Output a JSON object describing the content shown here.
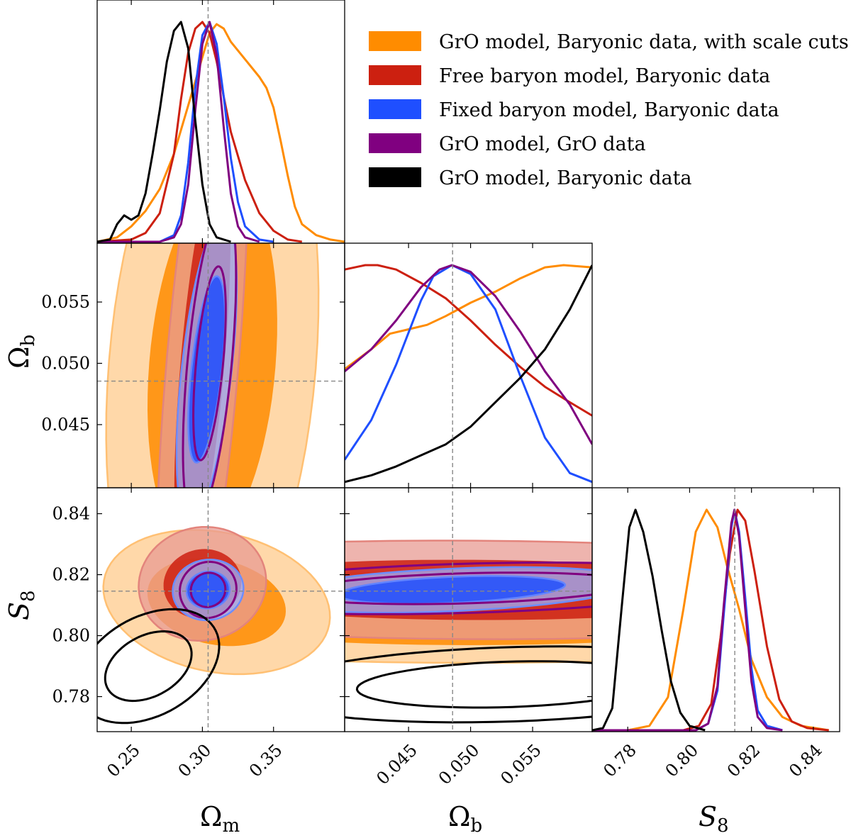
{
  "chart_data": {
    "type": "corner",
    "title": "",
    "parameters": [
      {
        "key": "Om",
        "label": "Ωm",
        "label_base": "Ω",
        "label_sub": "m",
        "range": [
          0.226,
          0.4
        ],
        "ticks": [
          0.25,
          0.3,
          0.35
        ],
        "tick_labels": [
          "0.25",
          "0.30",
          "0.35"
        ],
        "truth": 0.304
      },
      {
        "key": "Ob",
        "label": "Ωb",
        "label_base": "Ω",
        "label_sub": "b",
        "range": [
          0.03985,
          0.0598
        ],
        "ticks": [
          0.045,
          0.05,
          0.055
        ],
        "tick_labels": [
          "0.045",
          "0.050",
          "0.055"
        ],
        "truth": 0.04855
      },
      {
        "key": "S8",
        "label": "S8",
        "label_base": "S",
        "label_sub": "8",
        "range": [
          0.7685,
          0.8485
        ],
        "ticks": [
          0.78,
          0.8,
          0.82,
          0.84
        ],
        "tick_labels": [
          "0.78",
          "0.80",
          "0.82",
          "0.84"
        ],
        "truth": 0.8146
      }
    ],
    "legend_position": "top-right",
    "series": [
      {
        "name": "GrO model, Baryonic data, with scale cuts",
        "color": "#ff8c00",
        "filled": true,
        "outline": false,
        "marginals": {
          "Om": [
            [
              0.226,
              0
            ],
            [
              0.24,
              0.02
            ],
            [
              0.25,
              0.07
            ],
            [
              0.26,
              0.14
            ],
            [
              0.27,
              0.24
            ],
            [
              0.28,
              0.4
            ],
            [
              0.29,
              0.62
            ],
            [
              0.3,
              0.84
            ],
            [
              0.305,
              0.95
            ],
            [
              0.31,
              0.99
            ],
            [
              0.315,
              0.97
            ],
            [
              0.32,
              0.91
            ],
            [
              0.33,
              0.83
            ],
            [
              0.34,
              0.75
            ],
            [
              0.345,
              0.7
            ],
            [
              0.35,
              0.61
            ],
            [
              0.355,
              0.46
            ],
            [
              0.36,
              0.3
            ],
            [
              0.365,
              0.16
            ],
            [
              0.37,
              0.08
            ],
            [
              0.38,
              0.03
            ],
            [
              0.39,
              0.01
            ],
            [
              0.4,
              0
            ]
          ],
          "Ob": [
            [
              0.03985,
              0.53
            ],
            [
              0.042,
              0.62
            ],
            [
              0.0435,
              0.69
            ],
            [
              0.045,
              0.71
            ],
            [
              0.0465,
              0.73
            ],
            [
              0.048,
              0.77
            ],
            [
              0.05,
              0.83
            ],
            [
              0.052,
              0.88
            ],
            [
              0.054,
              0.94
            ],
            [
              0.056,
              0.99
            ],
            [
              0.0575,
              1.0
            ],
            [
              0.0598,
              0.99
            ]
          ],
          "S8": [
            [
              0.7685,
              0
            ],
            [
              0.78,
              0
            ],
            [
              0.787,
              0.02
            ],
            [
              0.793,
              0.15
            ],
            [
              0.798,
              0.55
            ],
            [
              0.802,
              0.9
            ],
            [
              0.8055,
              1.0
            ],
            [
              0.809,
              0.92
            ],
            [
              0.812,
              0.75
            ],
            [
              0.816,
              0.55
            ],
            [
              0.82,
              0.32
            ],
            [
              0.825,
              0.15
            ],
            [
              0.83,
              0.06
            ],
            [
              0.836,
              0.02
            ],
            [
              0.845,
              0
            ]
          ]
        }
      },
      {
        "name": "Free baryon model, Baryonic data",
        "color": "#cc2010",
        "filled": true,
        "outline": false,
        "marginals": {
          "Om": [
            [
              0.226,
              0
            ],
            [
              0.25,
              0.01
            ],
            [
              0.26,
              0.04
            ],
            [
              0.27,
              0.13
            ],
            [
              0.28,
              0.4
            ],
            [
              0.285,
              0.65
            ],
            [
              0.29,
              0.86
            ],
            [
              0.295,
              0.97
            ],
            [
              0.3,
              1.0
            ],
            [
              0.305,
              0.95
            ],
            [
              0.31,
              0.82
            ],
            [
              0.315,
              0.66
            ],
            [
              0.32,
              0.5
            ],
            [
              0.33,
              0.28
            ],
            [
              0.34,
              0.13
            ],
            [
              0.35,
              0.05
            ],
            [
              0.36,
              0.01
            ],
            [
              0.37,
              0
            ]
          ],
          "Ob": [
            [
              0.03985,
              0.98
            ],
            [
              0.0415,
              1.0
            ],
            [
              0.0425,
              1.0
            ],
            [
              0.044,
              0.98
            ],
            [
              0.046,
              0.92
            ],
            [
              0.048,
              0.85
            ],
            [
              0.05,
              0.75
            ],
            [
              0.052,
              0.64
            ],
            [
              0.054,
              0.54
            ],
            [
              0.056,
              0.45
            ],
            [
              0.058,
              0.38
            ],
            [
              0.0598,
              0.32
            ]
          ],
          "S8": [
            [
              0.7685,
              0
            ],
            [
              0.798,
              0
            ],
            [
              0.803,
              0.02
            ],
            [
              0.807,
              0.12
            ],
            [
              0.81,
              0.42
            ],
            [
              0.813,
              0.8
            ],
            [
              0.8155,
              1.0
            ],
            [
              0.818,
              0.95
            ],
            [
              0.821,
              0.72
            ],
            [
              0.825,
              0.38
            ],
            [
              0.829,
              0.14
            ],
            [
              0.833,
              0.04
            ],
            [
              0.838,
              0.01
            ],
            [
              0.845,
              0
            ]
          ]
        }
      },
      {
        "name": "Fixed baryon model, Baryonic data",
        "color": "#1f4fff",
        "filled": true,
        "outline": true,
        "marginals": {
          "Om": [
            [
              0.226,
              0
            ],
            [
              0.27,
              0
            ],
            [
              0.28,
              0.03
            ],
            [
              0.285,
              0.12
            ],
            [
              0.29,
              0.36
            ],
            [
              0.295,
              0.7
            ],
            [
              0.3,
              0.94
            ],
            [
              0.305,
              1.0
            ],
            [
              0.31,
              0.9
            ],
            [
              0.315,
              0.66
            ],
            [
              0.32,
              0.38
            ],
            [
              0.325,
              0.18
            ],
            [
              0.33,
              0.07
            ],
            [
              0.34,
              0.01
            ],
            [
              0.35,
              0
            ]
          ],
          "Ob": [
            [
              0.03985,
              0.12
            ],
            [
              0.042,
              0.3
            ],
            [
              0.044,
              0.55
            ],
            [
              0.046,
              0.84
            ],
            [
              0.047,
              0.95
            ],
            [
              0.0485,
              1.0
            ],
            [
              0.05,
              0.96
            ],
            [
              0.052,
              0.8
            ],
            [
              0.054,
              0.5
            ],
            [
              0.056,
              0.22
            ],
            [
              0.058,
              0.06
            ],
            [
              0.0598,
              0.02
            ]
          ],
          "S8": [
            [
              0.7685,
              0
            ],
            [
              0.802,
              0
            ],
            [
              0.806,
              0.03
            ],
            [
              0.809,
              0.18
            ],
            [
              0.811,
              0.52
            ],
            [
              0.8135,
              0.92
            ],
            [
              0.8145,
              1.0
            ],
            [
              0.816,
              0.9
            ],
            [
              0.818,
              0.6
            ],
            [
              0.82,
              0.28
            ],
            [
              0.822,
              0.09
            ],
            [
              0.825,
              0.02
            ],
            [
              0.83,
              0
            ]
          ]
        }
      },
      {
        "name": "GrO model, GrO data",
        "color": "#800080",
        "filled": false,
        "outline": true,
        "marginals": {
          "Om": [
            [
              0.226,
              0
            ],
            [
              0.27,
              0
            ],
            [
              0.28,
              0.02
            ],
            [
              0.285,
              0.08
            ],
            [
              0.29,
              0.26
            ],
            [
              0.295,
              0.6
            ],
            [
              0.3,
              0.9
            ],
            [
              0.305,
              1.0
            ],
            [
              0.31,
              0.85
            ],
            [
              0.315,
              0.52
            ],
            [
              0.32,
              0.22
            ],
            [
              0.325,
              0.07
            ],
            [
              0.33,
              0.02
            ],
            [
              0.34,
              0
            ]
          ],
          "Ob": [
            [
              0.03985,
              0.52
            ],
            [
              0.042,
              0.62
            ],
            [
              0.044,
              0.75
            ],
            [
              0.046,
              0.9
            ],
            [
              0.0475,
              0.98
            ],
            [
              0.0485,
              1.0
            ],
            [
              0.05,
              0.97
            ],
            [
              0.052,
              0.86
            ],
            [
              0.054,
              0.7
            ],
            [
              0.056,
              0.52
            ],
            [
              0.058,
              0.37
            ],
            [
              0.0598,
              0.19
            ]
          ],
          "S8": [
            [
              0.7685,
              0
            ],
            [
              0.802,
              0
            ],
            [
              0.806,
              0.03
            ],
            [
              0.809,
              0.2
            ],
            [
              0.811,
              0.56
            ],
            [
              0.8135,
              0.94
            ],
            [
              0.8145,
              1.0
            ],
            [
              0.816,
              0.88
            ],
            [
              0.818,
              0.55
            ],
            [
              0.82,
              0.22
            ],
            [
              0.822,
              0.06
            ],
            [
              0.825,
              0.01
            ],
            [
              0.83,
              0
            ]
          ]
        }
      },
      {
        "name": "GrO model, Baryonic data",
        "color": "#000000",
        "filled": false,
        "outline": true,
        "marginals": {
          "Om": [
            [
              0.226,
              0
            ],
            [
              0.235,
              0.01
            ],
            [
              0.24,
              0.08
            ],
            [
              0.245,
              0.12
            ],
            [
              0.25,
              0.1
            ],
            [
              0.255,
              0.12
            ],
            [
              0.26,
              0.22
            ],
            [
              0.265,
              0.4
            ],
            [
              0.27,
              0.6
            ],
            [
              0.275,
              0.82
            ],
            [
              0.28,
              0.96
            ],
            [
              0.285,
              1.0
            ],
            [
              0.29,
              0.88
            ],
            [
              0.295,
              0.55
            ],
            [
              0.3,
              0.26
            ],
            [
              0.305,
              0.08
            ],
            [
              0.31,
              0.02
            ],
            [
              0.32,
              0
            ]
          ],
          "Ob": [
            [
              0.03985,
              0.02
            ],
            [
              0.042,
              0.05
            ],
            [
              0.044,
              0.09
            ],
            [
              0.046,
              0.14
            ],
            [
              0.048,
              0.19
            ],
            [
              0.05,
              0.27
            ],
            [
              0.052,
              0.38
            ],
            [
              0.054,
              0.49
            ],
            [
              0.056,
              0.62
            ],
            [
              0.058,
              0.8
            ],
            [
              0.0598,
              1.0
            ]
          ],
          "S8": [
            [
              0.7685,
              0
            ],
            [
              0.772,
              0.01
            ],
            [
              0.775,
              0.1
            ],
            [
              0.778,
              0.55
            ],
            [
              0.7805,
              0.92
            ],
            [
              0.7825,
              1.0
            ],
            [
              0.785,
              0.9
            ],
            [
              0.788,
              0.7
            ],
            [
              0.791,
              0.45
            ],
            [
              0.794,
              0.22
            ],
            [
              0.797,
              0.08
            ],
            [
              0.8,
              0.02
            ],
            [
              0.805,
              0
            ]
          ]
        }
      }
    ]
  },
  "legend": {
    "entries": [
      "GrO model, Baryonic data, with scale cuts",
      "Free baryon model, Baryonic data",
      "Fixed baryon model, Baryonic data",
      "GrO model, GrO data",
      "GrO model, Baryonic data"
    ]
  }
}
